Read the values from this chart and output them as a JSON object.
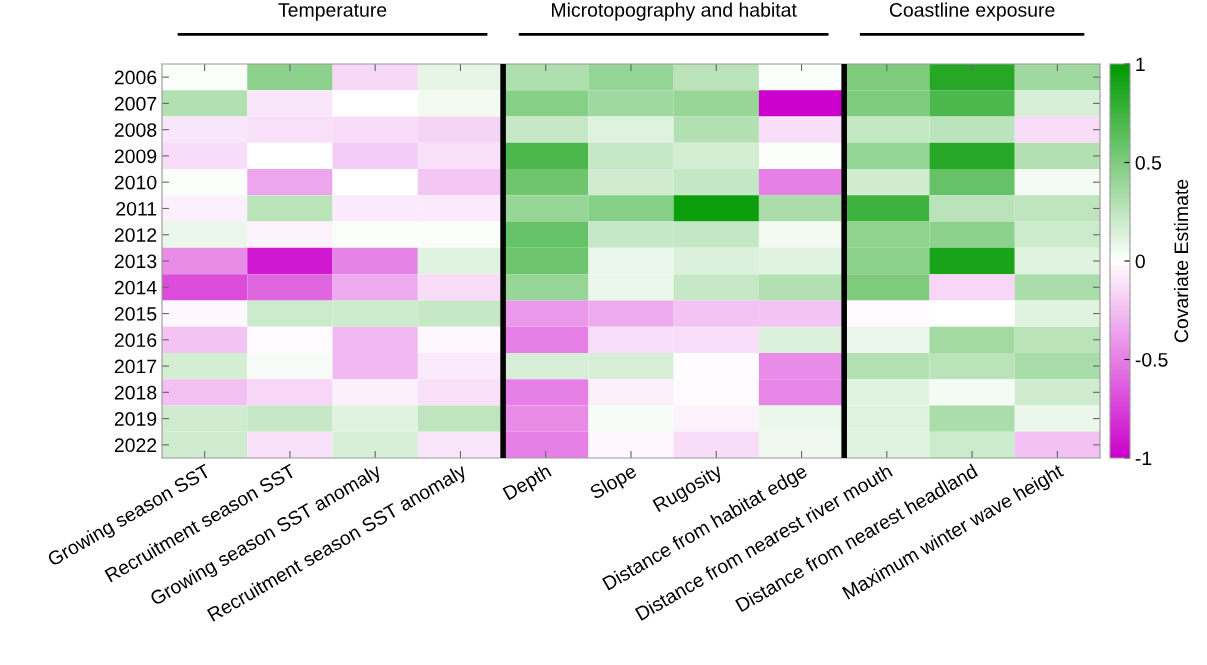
{
  "chart_data": {
    "type": "heatmap",
    "categories": [
      "Growing season SST",
      "Recruitment season SST",
      "Growing season SST anomaly",
      "Recruitment season SST anomaly",
      "Depth",
      "Slope",
      "Rugosity",
      "Distance from habitat edge",
      "Distance from nearest river mouth",
      "Distance from nearest headland",
      "Maximum winter wave height"
    ],
    "y_categories": [
      "2006",
      "2007",
      "2008",
      "2009",
      "2010",
      "2011",
      "2012",
      "2013",
      "2014",
      "2015",
      "2016",
      "2017",
      "2018",
      "2019",
      "2022"
    ],
    "annotations": [
      "Temperature",
      "Microtopography and habitat",
      "Coastline exposure"
    ],
    "cells": [
      [
        0.02,
        0.45,
        -0.15,
        0.1,
        0.32,
        0.42,
        0.27,
        0.02,
        0.5,
        0.85,
        0.37
      ],
      [
        0.3,
        -0.1,
        0,
        0.05,
        0.47,
        0.37,
        0.4,
        -1,
        0.5,
        0.7,
        0.16
      ],
      [
        -0.1,
        -0.12,
        -0.14,
        -0.17,
        0.22,
        0.13,
        0.3,
        -0.13,
        0.23,
        0.26,
        -0.14
      ],
      [
        -0.14,
        0,
        -0.2,
        -0.12,
        0.7,
        0.22,
        0.17,
        0.02,
        0.42,
        0.85,
        0.3
      ],
      [
        0.02,
        -0.35,
        0,
        -0.22,
        0.57,
        0.18,
        0.23,
        -0.5,
        0.18,
        0.6,
        0.04
      ],
      [
        -0.06,
        0.27,
        -0.08,
        -0.08,
        0.4,
        0.47,
        0.95,
        0.33,
        0.75,
        0.27,
        0.25
      ],
      [
        0.08,
        -0.05,
        0.02,
        0.02,
        0.6,
        0.22,
        0.23,
        0.05,
        0.43,
        0.45,
        0.2
      ],
      [
        -0.45,
        -0.9,
        -0.48,
        0.12,
        0.57,
        0.08,
        0.14,
        0.12,
        0.45,
        0.9,
        0.12
      ],
      [
        -0.7,
        -0.6,
        -0.33,
        -0.14,
        0.4,
        0.08,
        0.22,
        0.3,
        0.5,
        -0.16,
        0.33
      ],
      [
        -0.03,
        0.2,
        0.2,
        0.22,
        -0.4,
        -0.33,
        -0.23,
        -0.23,
        -0.02,
        0,
        0.12
      ],
      [
        -0.23,
        -0.02,
        -0.28,
        -0.03,
        -0.5,
        -0.13,
        -0.13,
        0.14,
        0.08,
        0.36,
        0.27
      ],
      [
        0.17,
        0.03,
        -0.28,
        -0.08,
        0.16,
        0.16,
        -0.01,
        -0.45,
        0.29,
        0.27,
        0.34
      ],
      [
        -0.25,
        -0.16,
        -0.06,
        -0.12,
        -0.5,
        -0.06,
        -0.02,
        -0.47,
        0.12,
        0.04,
        0.18
      ],
      [
        0.18,
        0.22,
        0.12,
        0.25,
        -0.45,
        0.03,
        -0.05,
        0.08,
        0.12,
        0.33,
        0.08
      ],
      [
        0.18,
        -0.12,
        0.16,
        -0.1,
        -0.5,
        -0.03,
        -0.14,
        0.06,
        0.12,
        0.2,
        -0.25
      ]
    ],
    "clim": [
      -1,
      1
    ],
    "clabel": "Covariate Estimate",
    "cticks": [
      -1,
      -0.5,
      0,
      0.5,
      1
    ]
  }
}
